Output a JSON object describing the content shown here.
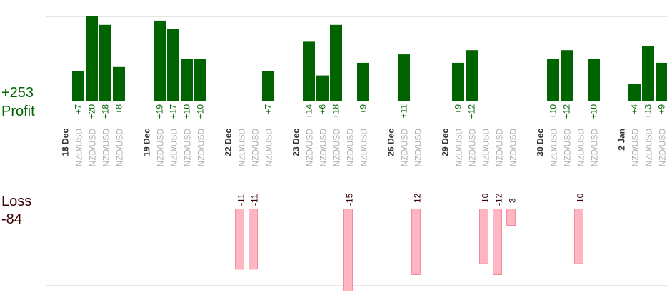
{
  "summary": {
    "profit_total": "+253",
    "profit_label": "Profit",
    "loss_label": "Loss",
    "loss_total": "-84"
  },
  "colors": {
    "profit_bar": "#006400",
    "loss_bar": "#ffb6c1",
    "profit_text": "#006400",
    "loss_text": "#3c0000",
    "axis": "#808080",
    "grid": "#e6e6e6",
    "pair_text": "#aaaaaa",
    "date_text": "#333333"
  },
  "chart_data": {
    "type": "bar",
    "title": "",
    "pair": "NZD/USD",
    "profit_ylim": [
      0,
      20
    ],
    "loss_ylim": [
      0,
      15
    ],
    "grid": true,
    "columns": [
      {
        "kind": "date",
        "label": "18 Dec"
      },
      {
        "kind": "trade",
        "value": 7
      },
      {
        "kind": "trade",
        "value": 20
      },
      {
        "kind": "trade",
        "value": 18
      },
      {
        "kind": "trade",
        "value": 8
      },
      {
        "kind": "gap"
      },
      {
        "kind": "date",
        "label": "19 Dec"
      },
      {
        "kind": "trade",
        "value": 19
      },
      {
        "kind": "trade",
        "value": 17
      },
      {
        "kind": "trade",
        "value": 10
      },
      {
        "kind": "trade",
        "value": 10
      },
      {
        "kind": "gap"
      },
      {
        "kind": "date",
        "label": "22 Dec"
      },
      {
        "kind": "trade",
        "value": -11
      },
      {
        "kind": "trade",
        "value": -11
      },
      {
        "kind": "trade",
        "value": 7
      },
      {
        "kind": "gap"
      },
      {
        "kind": "date",
        "label": "23 Dec"
      },
      {
        "kind": "trade",
        "value": 14
      },
      {
        "kind": "trade",
        "value": 6
      },
      {
        "kind": "trade",
        "value": 18
      },
      {
        "kind": "trade",
        "value": -15
      },
      {
        "kind": "trade",
        "value": 9
      },
      {
        "kind": "gap"
      },
      {
        "kind": "date",
        "label": "26 Dec"
      },
      {
        "kind": "trade",
        "value": 11
      },
      {
        "kind": "trade",
        "value": -12
      },
      {
        "kind": "gap"
      },
      {
        "kind": "date",
        "label": "29 Dec"
      },
      {
        "kind": "trade",
        "value": 9
      },
      {
        "kind": "trade",
        "value": 12
      },
      {
        "kind": "trade",
        "value": -10
      },
      {
        "kind": "trade",
        "value": -12
      },
      {
        "kind": "trade",
        "value": -3
      },
      {
        "kind": "gap"
      },
      {
        "kind": "date",
        "label": "30 Dec"
      },
      {
        "kind": "trade",
        "value": 10
      },
      {
        "kind": "trade",
        "value": 12
      },
      {
        "kind": "trade",
        "value": -10
      },
      {
        "kind": "trade",
        "value": 10
      },
      {
        "kind": "gap"
      },
      {
        "kind": "date",
        "label": "2 Jan"
      },
      {
        "kind": "trade",
        "value": 4
      },
      {
        "kind": "trade",
        "value": 13
      },
      {
        "kind": "trade",
        "value": 9
      }
    ]
  }
}
